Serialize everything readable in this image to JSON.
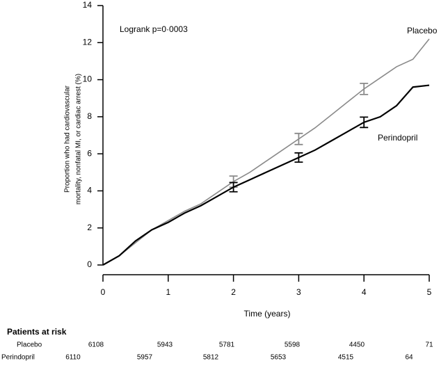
{
  "chart_data": {
    "type": "line",
    "ylabel": [
      "Proportion who had cardiovascular",
      "mortality, nonfatal MI, or cardiac arrest (%)"
    ],
    "xlabel": "Time (years)",
    "annotation": "Logrank p=0·0003",
    "xlim": [
      0,
      5
    ],
    "xticks": [
      0,
      1,
      2,
      3,
      4,
      5
    ],
    "ylim": [
      0,
      14
    ],
    "yticks": [
      0,
      2,
      4,
      6,
      8,
      10,
      12,
      14
    ],
    "series": [
      {
        "name": "Placebo",
        "color": "#8a8a8a",
        "x": [
          0,
          0.25,
          0.5,
          0.75,
          1,
          1.25,
          1.5,
          1.75,
          2,
          2.25,
          2.5,
          2.75,
          3,
          3.25,
          3.5,
          3.75,
          4,
          4.25,
          4.5,
          4.75,
          5
        ],
        "values": [
          0,
          0.5,
          1.2,
          1.9,
          2.4,
          2.9,
          3.3,
          3.9,
          4.5,
          5.0,
          5.6,
          6.2,
          6.8,
          7.4,
          8.1,
          8.8,
          9.5,
          10.1,
          10.7,
          11.1,
          12.2
        ],
        "error_bars": {
          "x": [
            2,
            3,
            4
          ],
          "values": [
            4.5,
            6.8,
            9.5
          ],
          "errors": [
            0.3,
            0.3,
            0.3
          ]
        }
      },
      {
        "name": "Perindopril",
        "color": "#000000",
        "x": [
          0,
          0.25,
          0.5,
          0.75,
          1,
          1.25,
          1.5,
          1.75,
          2,
          2.25,
          2.5,
          2.75,
          3,
          3.25,
          3.5,
          3.75,
          4,
          4.25,
          4.5,
          4.75,
          5
        ],
        "values": [
          0,
          0.5,
          1.3,
          1.9,
          2.3,
          2.8,
          3.2,
          3.7,
          4.2,
          4.6,
          5.0,
          5.4,
          5.8,
          6.2,
          6.7,
          7.2,
          7.7,
          8.0,
          8.6,
          9.6,
          9.7
        ],
        "error_bars": {
          "x": [
            2,
            3,
            4
          ],
          "values": [
            4.2,
            5.8,
            7.7
          ],
          "errors": [
            0.25,
            0.25,
            0.28
          ]
        }
      }
    ],
    "risk_table": {
      "title": "Patients at risk",
      "rows": [
        {
          "name": "Placebo",
          "values": [
            6108,
            5943,
            5781,
            5598,
            4450,
            71
          ]
        },
        {
          "name": "Perindopril",
          "values": [
            6110,
            5957,
            5812,
            5653,
            4515,
            64
          ]
        }
      ]
    }
  }
}
